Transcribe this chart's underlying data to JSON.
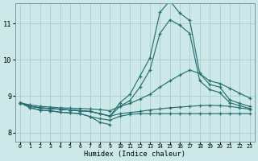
{
  "xlabel": "Humidex (Indice chaleur)",
  "background_color": "#cce8e8",
  "line_color": "#2a7070",
  "grid_color": "#aacccc",
  "xlim": [
    -0.5,
    23.5
  ],
  "ylim": [
    7.75,
    11.55
  ],
  "yticks": [
    8,
    9,
    10,
    11
  ],
  "xticks": [
    0,
    1,
    2,
    3,
    4,
    5,
    6,
    7,
    8,
    9,
    10,
    11,
    12,
    13,
    14,
    15,
    16,
    17,
    18,
    19,
    20,
    21,
    22,
    23
  ],
  "lines": [
    {
      "x": [
        0,
        1,
        2,
        3,
        4,
        5,
        6,
        7,
        8,
        9,
        10,
        11,
        12,
        13,
        14,
        15,
        16,
        17,
        18,
        19,
        20,
        21,
        22,
        23
      ],
      "y": [
        8.82,
        8.72,
        8.68,
        8.66,
        8.64,
        8.62,
        8.6,
        8.58,
        8.52,
        8.45,
        8.82,
        9.05,
        9.55,
        10.05,
        11.3,
        11.62,
        11.28,
        11.08,
        9.62,
        9.32,
        9.25,
        8.9,
        8.8,
        8.72
      ]
    },
    {
      "x": [
        0,
        1,
        2,
        3,
        4,
        5,
        6,
        7,
        8,
        9,
        10,
        11,
        12,
        13,
        14,
        15,
        16,
        17,
        18,
        19,
        20,
        21,
        22,
        23
      ],
      "y": [
        8.82,
        8.72,
        8.68,
        8.66,
        8.64,
        8.62,
        8.6,
        8.58,
        8.52,
        8.45,
        8.72,
        8.88,
        9.25,
        9.72,
        10.72,
        11.1,
        10.95,
        10.72,
        9.42,
        9.18,
        9.1,
        8.82,
        8.74,
        8.66
      ]
    },
    {
      "x": [
        0,
        1,
        2,
        3,
        4,
        5,
        6,
        7,
        8,
        9,
        10,
        11,
        12,
        13,
        14,
        15,
        16,
        17,
        18,
        19,
        20,
        21,
        22,
        23
      ],
      "y": [
        8.82,
        8.76,
        8.72,
        8.7,
        8.68,
        8.67,
        8.66,
        8.65,
        8.63,
        8.6,
        8.72,
        8.8,
        8.92,
        9.05,
        9.25,
        9.42,
        9.58,
        9.72,
        9.62,
        9.42,
        9.35,
        9.22,
        9.08,
        8.95
      ]
    },
    {
      "x": [
        0,
        1,
        2,
        3,
        4,
        5,
        6,
        7,
        8,
        9,
        10,
        11,
        12,
        13,
        14,
        15,
        16,
        17,
        18,
        19,
        20,
        21,
        22,
        23
      ],
      "y": [
        8.82,
        8.72,
        8.68,
        8.66,
        8.64,
        8.62,
        8.6,
        8.58,
        8.52,
        8.45,
        8.52,
        8.55,
        8.58,
        8.62,
        8.65,
        8.68,
        8.7,
        8.72,
        8.74,
        8.75,
        8.74,
        8.72,
        8.68,
        8.64
      ]
    },
    {
      "x": [
        0,
        1,
        2,
        3,
        4,
        5,
        6,
        7,
        8,
        9,
        10,
        11,
        12,
        13,
        14,
        15,
        16,
        17,
        18,
        19,
        20,
        21,
        22,
        23
      ],
      "y": [
        8.82,
        8.68,
        8.62,
        8.6,
        8.56,
        8.54,
        8.52,
        8.44,
        8.38,
        8.34,
        8.45,
        8.5,
        8.52,
        8.52,
        8.52,
        8.52,
        8.52,
        8.52,
        8.52,
        8.52,
        8.52,
        8.52,
        8.52,
        8.52
      ]
    },
    {
      "x": [
        0,
        1,
        2,
        3,
        4,
        5,
        6,
        7,
        8,
        9
      ],
      "y": [
        8.82,
        8.68,
        8.62,
        8.6,
        8.56,
        8.54,
        8.52,
        8.44,
        8.28,
        8.22
      ]
    }
  ]
}
